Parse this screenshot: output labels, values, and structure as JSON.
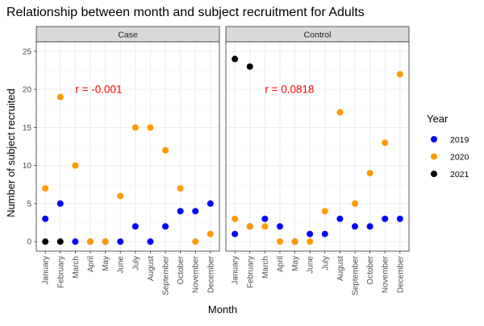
{
  "chart_data": {
    "type": "scatter",
    "title": "Relationship between month and subject recruitment for Adults",
    "xlabel": "Month",
    "ylabel": "Number of subject recruited",
    "categories": [
      "January",
      "February",
      "March",
      "April",
      "May",
      "June",
      "July",
      "August",
      "September",
      "October",
      "November",
      "December"
    ],
    "ylim": [
      -1.25,
      26.25
    ],
    "yticks": [
      0,
      5,
      10,
      15,
      20,
      25
    ],
    "grid": true,
    "legend": {
      "title": "Year",
      "placement": "right",
      "items": [
        {
          "name": "2019",
          "color": "#0000ff"
        },
        {
          "name": "2020",
          "color": "#ff9900"
        },
        {
          "name": "2021",
          "color": "#000000"
        }
      ]
    },
    "panels": [
      {
        "label": "Case",
        "annotation": "r =  -0.001",
        "annotation_anchor": {
          "x": "March",
          "y": 20
        },
        "series": [
          {
            "name": "2019",
            "values": [
              3,
              5,
              0,
              0,
              0,
              0,
              2,
              0,
              2,
              4,
              4,
              5
            ]
          },
          {
            "name": "2020",
            "values": [
              7,
              19,
              10,
              0,
              0,
              6,
              15,
              15,
              12,
              7,
              0,
              1
            ]
          },
          {
            "name": "2021",
            "values": [
              0,
              0,
              null,
              null,
              null,
              null,
              null,
              null,
              null,
              null,
              null,
              null
            ]
          }
        ]
      },
      {
        "label": "Control",
        "annotation": "r =  0.0818",
        "annotation_anchor": {
          "x": "March",
          "y": 20
        },
        "series": [
          {
            "name": "2019",
            "values": [
              1,
              2,
              3,
              2,
              0,
              1,
              1,
              3,
              2,
              2,
              3,
              3
            ]
          },
          {
            "name": "2020",
            "values": [
              3,
              2,
              2,
              0,
              0,
              0,
              4,
              17,
              5,
              9,
              13,
              22
            ]
          },
          {
            "name": "2021",
            "values": [
              24,
              23,
              null,
              null,
              null,
              null,
              null,
              null,
              null,
              null,
              null,
              null
            ]
          }
        ]
      }
    ],
    "colors": {
      "annotation": "#ff0000",
      "strip_fill": "#d9d9d9",
      "grid_major": "#ebebeb",
      "grid_minor": "#f4f4f4",
      "panel_border": "#333333"
    }
  }
}
